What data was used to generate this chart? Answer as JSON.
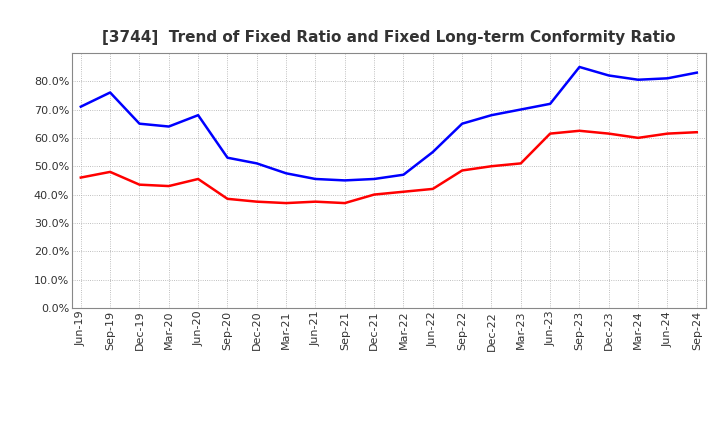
{
  "title": "[3744]  Trend of Fixed Ratio and Fixed Long-term Conformity Ratio",
  "x_labels": [
    "Jun-19",
    "Sep-19",
    "Dec-19",
    "Mar-20",
    "Jun-20",
    "Sep-20",
    "Dec-20",
    "Mar-21",
    "Jun-21",
    "Sep-21",
    "Dec-21",
    "Mar-22",
    "Jun-22",
    "Sep-22",
    "Dec-22",
    "Mar-23",
    "Jun-23",
    "Sep-23",
    "Dec-23",
    "Mar-24",
    "Jun-24",
    "Sep-24"
  ],
  "fixed_ratio": [
    71.0,
    76.0,
    65.0,
    64.0,
    68.0,
    53.0,
    51.0,
    47.5,
    45.5,
    45.0,
    45.5,
    47.0,
    55.0,
    65.0,
    68.0,
    70.0,
    72.0,
    85.0,
    82.0,
    80.5,
    81.0,
    83.0
  ],
  "fixed_lt_ratio": [
    46.0,
    48.0,
    43.5,
    43.0,
    45.5,
    38.5,
    37.5,
    37.0,
    37.5,
    37.0,
    40.0,
    41.0,
    42.0,
    48.5,
    50.0,
    51.0,
    61.5,
    62.5,
    61.5,
    60.0,
    61.5,
    62.0
  ],
  "fixed_ratio_color": "#0000FF",
  "fixed_lt_ratio_color": "#FF0000",
  "ylim": [
    0,
    90
  ],
  "yticks": [
    0,
    10,
    20,
    30,
    40,
    50,
    60,
    70,
    80
  ],
  "background_color": "#FFFFFF",
  "grid_color": "#AAAAAA",
  "title_fontsize": 11,
  "tick_fontsize": 8,
  "legend_fontsize": 9
}
